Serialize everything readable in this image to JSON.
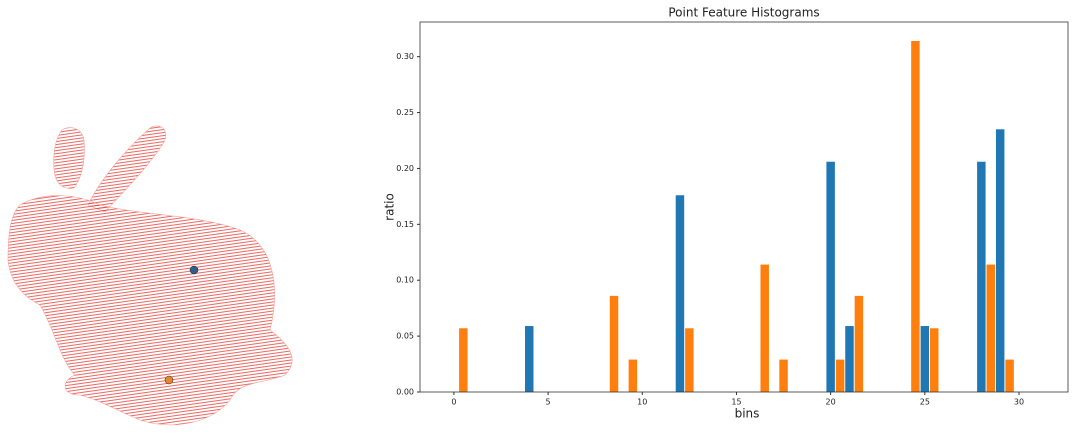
{
  "chart_data": {
    "type": "bar",
    "title": "Point Feature Histograms",
    "x_label": "bins",
    "y_label": "ratio",
    "x": [
      0,
      1,
      2,
      3,
      4,
      5,
      6,
      7,
      8,
      9,
      10,
      11,
      12,
      13,
      14,
      15,
      16,
      17,
      18,
      19,
      20,
      21,
      22,
      23,
      24,
      25,
      26,
      27,
      28,
      29,
      30,
      31
    ],
    "series": [
      {
        "color": "#1f77b4",
        "values": [
          0,
          0,
          0,
          0,
          0.059,
          0,
          0,
          0,
          0,
          0,
          0,
          0,
          0.176,
          0,
          0,
          0,
          0,
          0,
          0,
          0,
          0.206,
          0.059,
          0,
          0,
          0,
          0.059,
          0,
          0,
          0.206,
          0.235,
          0,
          0
        ]
      },
      {
        "color": "#ff7f0e",
        "values": [
          0.057,
          0,
          0,
          0,
          0,
          0,
          0,
          0,
          0.086,
          0.029,
          0,
          0,
          0.057,
          0,
          0,
          0,
          0.114,
          0.029,
          0,
          0,
          0.029,
          0.086,
          0,
          0,
          0.314,
          0.057,
          0,
          0,
          0.114,
          0.029,
          0,
          0
        ]
      }
    ],
    "xlim": [
      -1.8,
      32.6
    ],
    "ylim": [
      0,
      0.331
    ],
    "xticks": [
      0,
      5,
      10,
      15,
      20,
      25,
      30
    ],
    "yticks": [
      {
        "value": 0,
        "label": "0.00"
      },
      {
        "value": 0.05,
        "label": "0.05"
      },
      {
        "value": 0.1,
        "label": "0.10"
      },
      {
        "value": 0.15,
        "label": "0.15"
      },
      {
        "value": 0.2,
        "label": "0.20"
      },
      {
        "value": 0.25,
        "label": "0.25"
      },
      {
        "value": 0.3,
        "label": "0.30"
      }
    ]
  }
}
